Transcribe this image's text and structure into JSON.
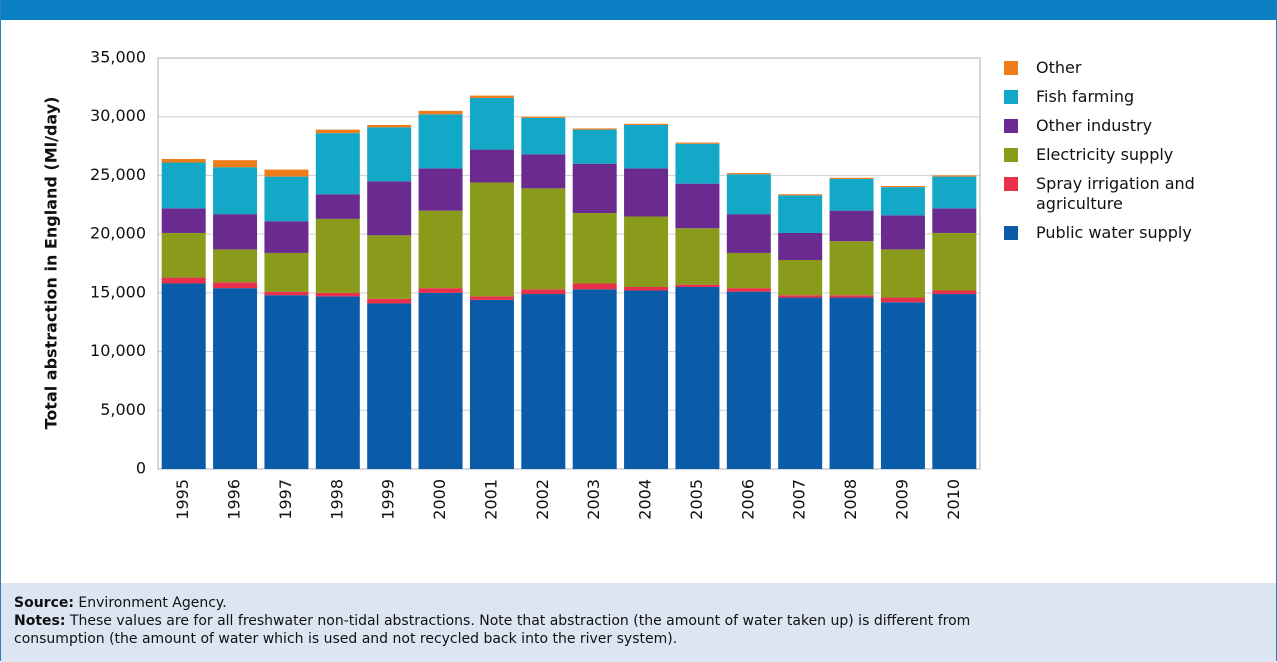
{
  "chart_data": {
    "type": "stacked_bar",
    "y_label": "Total abstraction in England (Ml/day)",
    "categories": [
      "1995",
      "1996",
      "1997",
      "1998",
      "1999",
      "2000",
      "2001",
      "2002",
      "2003",
      "2004",
      "2005",
      "2006",
      "2007",
      "2008",
      "2009",
      "2010"
    ],
    "series": [
      {
        "name": "Public water supply",
        "color": "#0a5ca8",
        "values": [
          15800,
          15400,
          14800,
          14700,
          14100,
          15000,
          14400,
          14900,
          15300,
          15200,
          15500,
          15100,
          14600,
          14600,
          14200,
          14900
        ]
      },
      {
        "name": "Spray irrigation and agriculture",
        "color": "#e8304a",
        "values": [
          500,
          500,
          300,
          300,
          400,
          400,
          300,
          400,
          500,
          300,
          200,
          300,
          200,
          200,
          400,
          300
        ]
      },
      {
        "name": "Electricity supply",
        "color": "#8a9a1b",
        "values": [
          3800,
          2800,
          3300,
          6300,
          5400,
          6600,
          9700,
          8600,
          6000,
          6000,
          4800,
          3000,
          3000,
          4600,
          4100,
          4900
        ]
      },
      {
        "name": "Other industry",
        "color": "#6a2a8f",
        "values": [
          2100,
          3000,
          2700,
          2100,
          4600,
          3600,
          2800,
          2900,
          4200,
          4100,
          3800,
          3300,
          2300,
          2600,
          2900,
          2100
        ]
      },
      {
        "name": "Fish farming",
        "color": "#13a7c8",
        "values": [
          3900,
          4000,
          3800,
          5200,
          4600,
          4600,
          4400,
          3100,
          2900,
          3700,
          3400,
          3400,
          3200,
          2700,
          2400,
          2700
        ]
      },
      {
        "name": "Other",
        "color": "#ef7d1a",
        "values": [
          300,
          600,
          600,
          300,
          200,
          300,
          200,
          100,
          100,
          100,
          100,
          100,
          100,
          100,
          100,
          100
        ]
      }
    ],
    "ylim": [
      0,
      35000
    ],
    "yticks": [
      0,
      {
        "value": 5000,
        "label": "5,000"
      },
      {
        "value": 10000,
        "label": "10,000"
      },
      {
        "value": 15000,
        "label": "15,000"
      },
      {
        "value": 20000,
        "label": "20,000"
      },
      {
        "value": 25000,
        "label": "25,000"
      },
      {
        "value": 30000,
        "label": "30,000"
      },
      {
        "value": 35000,
        "label": "35,000"
      }
    ],
    "grid": true
  },
  "footer": {
    "source_label": "Source:",
    "source": "Environment Agency.",
    "notes_label": "Notes:",
    "notes": "These values are for all freshwater non-tidal abstractions. Note that abstraction (the amount of water taken up) is different from consumption (the amount of water which is used and not recycled back into the river system)."
  }
}
